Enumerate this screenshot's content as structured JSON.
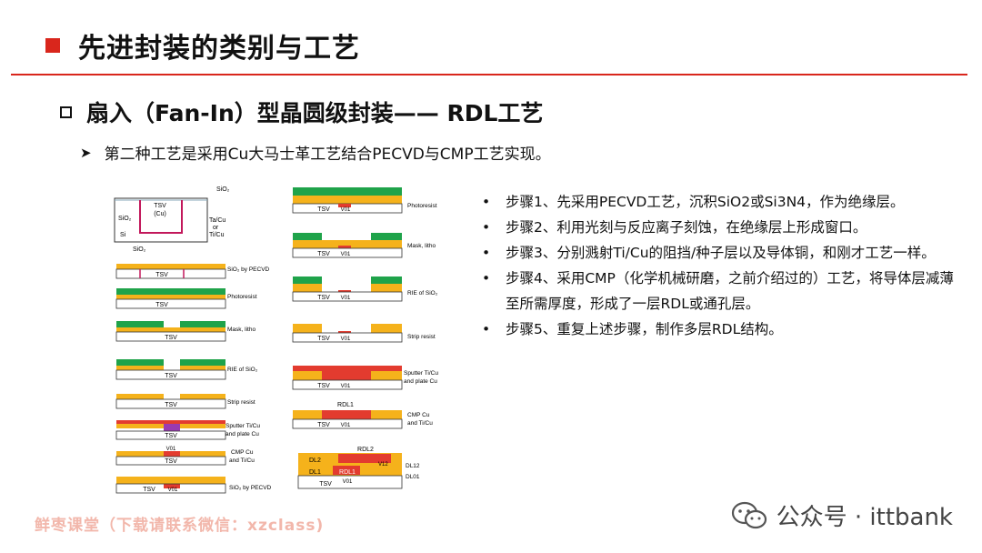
{
  "header": {
    "title": "先进封装的类别与工艺"
  },
  "section": {
    "heading": "扇入（Fan-In）型晶圆级封装—— RDL工艺"
  },
  "note": {
    "text": "第二种工艺是采用Cu大马士革工艺结合PECVD与CMP工艺实现。"
  },
  "diagram": {
    "top_labels": {
      "sio2_top": "SiO₂",
      "tsv": "TSV",
      "cu": "(Cu)",
      "sio2_left": "SiO₂",
      "si": "Si",
      "tacu": "Ta/Cu",
      "or": "or",
      "ticu": "Ti/Cu",
      "sio2_bottom": "SiO₂"
    },
    "left_steps": [
      "SiO₂ by PECVD",
      "Photoresist",
      "Mask, litho",
      "RIE of SiO₂",
      "Strip resist",
      "Sputter Ti/Cu",
      "and plate Cu",
      "CMP Cu",
      "and Ti/Cu",
      "SiO₂ by PECVD"
    ],
    "right_steps": [
      "Photoresist",
      "Mask, litho",
      "RIE of SiO₂",
      "Strip resist",
      "Sputter Ti/Cu",
      "and plate Cu",
      "CMP Cu",
      "and Ti/Cu"
    ],
    "tsv": "TSV",
    "v01": "V01",
    "rdl1": "RDL1",
    "rdl2": "RDL2",
    "dl2": "DL2",
    "dl1": "DL1",
    "v12": "V12",
    "dl12": "DL12",
    "dl01": "DL01"
  },
  "steps": [
    "步骤1、先采用PECVD工艺，沉积SiO2或Si3N4，作为绝缘层。",
    "步骤2、利用光刻与反应离子刻蚀，在绝缘层上形成窗口。",
    "步骤3、分别溅射Ti/Cu的阻挡/种子层以及导体铜，和刚才工艺一样。",
    "步骤4、采用CMP（化学机械研磨，之前介绍过的）工艺，将导体层减薄至所需厚度，形成了一层RDL或通孔层。",
    "步骤5、重复上述步骤，制作多层RDL结构。"
  ],
  "bullet": "•",
  "footer": {
    "watermark": "鲜枣课堂（下载请联系微信：xzclass)",
    "wechat_label": "公众号 · ittbank"
  },
  "colors": {
    "accent": "#d9261c",
    "oxide": "#f5b21b",
    "resist": "#1fa34a",
    "copper": "#e33b2f",
    "liner": "#9a3ab0"
  }
}
